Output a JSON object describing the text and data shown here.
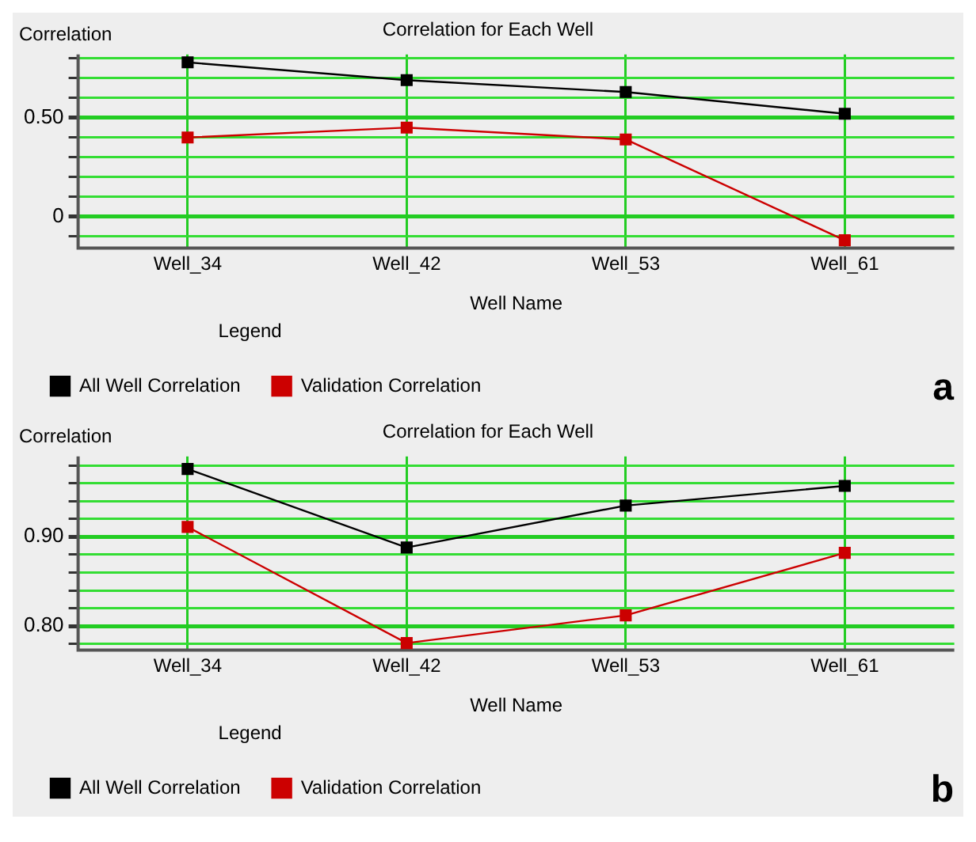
{
  "chart_data": [
    {
      "type": "line",
      "title": "Correlation for Each Well",
      "xlabel": "Well Name",
      "ylabel": "Correlation",
      "legend_title": "Legend",
      "legend": "bottom left",
      "marker": "square",
      "grid": true,
      "annotations": [
        "a"
      ],
      "categories": [
        "Well_34",
        "Well_42",
        "Well_53",
        "Well_61"
      ],
      "series": [
        {
          "name": "All Well Correlation",
          "color": "#000000",
          "values": [
            0.78,
            0.69,
            0.63,
            0.52
          ]
        },
        {
          "name": "Validation Correlation",
          "color": "#cc0000",
          "values": [
            0.4,
            0.45,
            0.39,
            -0.12
          ]
        }
      ],
      "ylim": [
        -0.16,
        0.82
      ],
      "yticks": [
        {
          "value": -0.1,
          "label": null
        },
        0,
        {
          "value": 0.1,
          "label": null
        },
        {
          "value": 0.2,
          "label": null
        },
        {
          "value": 0.3,
          "label": null
        },
        {
          "value": 0.4,
          "label": null
        },
        {
          "value": 0.5,
          "label": "0.50"
        },
        {
          "value": 0.6,
          "label": null
        },
        {
          "value": 0.7,
          "label": null
        },
        {
          "value": 0.8,
          "label": null
        }
      ]
    },
    {
      "type": "line",
      "title": "Correlation for Each Well",
      "xlabel": "Well Name",
      "ylabel": "Correlation",
      "legend_title": "Legend",
      "legend": "bottom left",
      "marker": "square",
      "grid": true,
      "annotations": [
        "b"
      ],
      "categories": [
        "Well_34",
        "Well_42",
        "Well_53",
        "Well_61"
      ],
      "series": [
        {
          "name": "All Well Correlation",
          "color": "#000000",
          "values": [
            0.976,
            0.888,
            0.935,
            0.957
          ]
        },
        {
          "name": "Validation Correlation",
          "color": "#cc0000",
          "values": [
            0.911,
            0.781,
            0.812,
            0.882
          ]
        }
      ],
      "ylim": [
        0.773,
        0.99
      ],
      "yticks": [
        {
          "value": 0.78,
          "label": null
        },
        {
          "value": 0.8,
          "label": "0.80"
        },
        {
          "value": 0.82,
          "label": null
        },
        {
          "value": 0.84,
          "label": null
        },
        {
          "value": 0.86,
          "label": null
        },
        {
          "value": 0.88,
          "label": null
        },
        {
          "value": 0.9,
          "label": "0.90"
        },
        {
          "value": 0.92,
          "label": null
        },
        {
          "value": 0.94,
          "label": null
        },
        {
          "value": 0.96,
          "label": null
        },
        {
          "value": 0.98,
          "label": null
        }
      ]
    }
  ]
}
